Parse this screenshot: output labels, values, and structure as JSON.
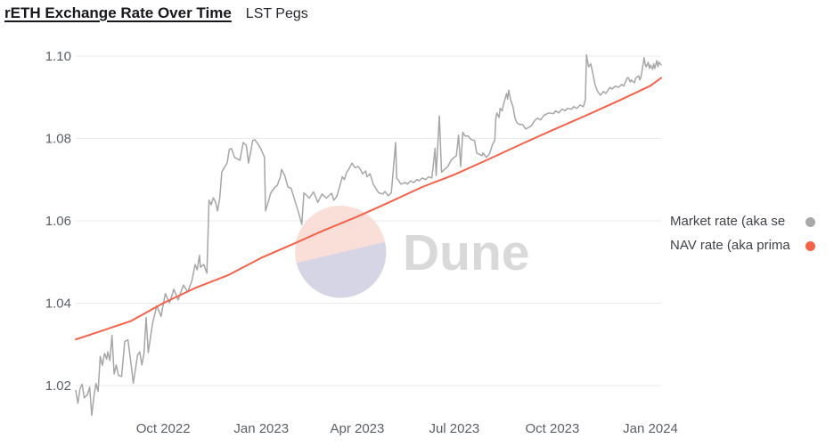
{
  "header": {
    "title": "rETH Exchange Rate Over Time",
    "subtitle": "LST Pegs"
  },
  "watermark": {
    "text": "Dune",
    "circle_top_color": "#fadfd8",
    "circle_bottom_color": "#d6d5e5",
    "text_color": "#d9d9d9"
  },
  "legend": {
    "items": [
      {
        "label": "Market rate (aka se",
        "color": "#a9a9a9"
      },
      {
        "label": "NAV rate (aka prima",
        "color": "#f4624a"
      }
    ]
  },
  "chart_data": {
    "type": "line",
    "title": "rETH Exchange Rate Over Time",
    "subtitle": "LST Pegs",
    "xlabel": "",
    "ylabel": "",
    "grid": "horizontal-only",
    "legend_position": "right",
    "x_domain": [
      "2022-07-11",
      "2024-01-11"
    ],
    "y_plot_range": [
      1.012,
      1.1028
    ],
    "y_ticks": [
      {
        "label": "1.10",
        "value": 1.1
      },
      {
        "label": "1.08",
        "value": 1.08
      },
      {
        "label": "1.06",
        "value": 1.06
      },
      {
        "label": "1.04",
        "value": 1.04
      },
      {
        "label": "1.02",
        "value": 1.02
      }
    ],
    "x_ticks": [
      {
        "label": "Oct 2022",
        "date": "2022-10-01"
      },
      {
        "label": "Jan 2023",
        "date": "2023-01-01"
      },
      {
        "label": "Apr 2023",
        "date": "2023-04-01"
      },
      {
        "label": "Jul 2023",
        "date": "2023-07-01"
      },
      {
        "label": "Oct 2023",
        "date": "2023-10-01"
      },
      {
        "label": "Jan 2024",
        "date": "2024-01-01"
      }
    ],
    "series": [
      {
        "name": "Market rate (aka se",
        "color": "#a6a6a6",
        "stroke_width": 1.5,
        "points": [
          [
            "2022-07-11",
            1.0188
          ],
          [
            "2022-07-13",
            1.0157
          ],
          [
            "2022-07-15",
            1.0192
          ],
          [
            "2022-07-17",
            1.0203
          ],
          [
            "2022-07-19",
            1.017
          ],
          [
            "2022-07-22",
            1.0178
          ],
          [
            "2022-07-24",
            1.0196
          ],
          [
            "2022-07-26",
            1.0128
          ],
          [
            "2022-07-28",
            1.0172
          ],
          [
            "2022-07-30",
            1.0205
          ],
          [
            "2022-08-01",
            1.0186
          ],
          [
            "2022-08-03",
            1.0271
          ],
          [
            "2022-08-05",
            1.0249
          ],
          [
            "2022-08-07",
            1.0278
          ],
          [
            "2022-08-09",
            1.0264
          ],
          [
            "2022-08-10",
            1.0282
          ],
          [
            "2022-08-12",
            1.0261
          ],
          [
            "2022-08-14",
            1.0322
          ],
          [
            "2022-08-16",
            1.0228
          ],
          [
            "2022-08-18",
            1.025
          ],
          [
            "2022-08-20",
            1.0225
          ],
          [
            "2022-08-23",
            1.0222
          ],
          [
            "2022-08-26",
            1.0307
          ],
          [
            "2022-08-29",
            1.0311
          ],
          [
            "2022-09-01",
            1.025
          ],
          [
            "2022-09-03",
            1.0206
          ],
          [
            "2022-09-07",
            1.0274
          ],
          [
            "2022-09-09",
            1.0282
          ],
          [
            "2022-09-11",
            1.025
          ],
          [
            "2022-09-13",
            1.0278
          ],
          [
            "2022-09-15",
            1.0365
          ],
          [
            "2022-09-17",
            1.028
          ],
          [
            "2022-09-21",
            1.0351
          ],
          [
            "2022-09-25",
            1.0394
          ],
          [
            "2022-09-29",
            1.0368
          ],
          [
            "2022-10-03",
            1.0423
          ],
          [
            "2022-10-07",
            1.0401
          ],
          [
            "2022-10-11",
            1.0434
          ],
          [
            "2022-10-15",
            1.0408
          ],
          [
            "2022-10-20",
            1.0444
          ],
          [
            "2022-10-24",
            1.0427
          ],
          [
            "2022-10-28",
            1.0455
          ],
          [
            "2022-10-31",
            1.0494
          ],
          [
            "2022-11-02",
            1.0481
          ],
          [
            "2022-11-04",
            1.0516
          ],
          [
            "2022-11-05",
            1.0487
          ],
          [
            "2022-11-08",
            1.0494
          ],
          [
            "2022-11-11",
            1.0473
          ],
          [
            "2022-11-13",
            1.065
          ],
          [
            "2022-11-15",
            1.0639
          ],
          [
            "2022-11-17",
            1.0656
          ],
          [
            "2022-11-19",
            1.0646
          ],
          [
            "2022-11-21",
            1.0624
          ],
          [
            "2022-11-23",
            1.0655
          ],
          [
            "2022-11-25",
            1.0719
          ],
          [
            "2022-11-28",
            1.0732
          ],
          [
            "2022-11-30",
            1.074
          ],
          [
            "2022-12-02",
            1.0773
          ],
          [
            "2022-12-04",
            1.0776
          ],
          [
            "2022-12-07",
            1.0754
          ],
          [
            "2022-12-09",
            1.0751
          ],
          [
            "2022-12-12",
            1.0747
          ],
          [
            "2022-12-15",
            1.079
          ],
          [
            "2022-12-18",
            1.0783
          ],
          [
            "2022-12-20",
            1.074
          ],
          [
            "2022-12-24",
            1.0795
          ],
          [
            "2022-12-26",
            1.0797
          ],
          [
            "2022-12-29",
            1.0786
          ],
          [
            "2023-01-01",
            1.0773
          ],
          [
            "2023-01-04",
            1.0754
          ],
          [
            "2023-01-05",
            1.0624
          ],
          [
            "2023-01-08",
            1.065
          ],
          [
            "2023-01-10",
            1.0668
          ],
          [
            "2023-01-14",
            1.0682
          ],
          [
            "2023-01-16",
            1.0686
          ],
          [
            "2023-01-19",
            1.0708
          ],
          [
            "2023-01-20",
            1.0725
          ],
          [
            "2023-01-23",
            1.071
          ],
          [
            "2023-01-26",
            1.0682
          ],
          [
            "2023-01-29",
            1.0679
          ],
          [
            "2023-02-02",
            1.0645
          ],
          [
            "2023-02-05",
            1.062
          ],
          [
            "2023-02-08",
            1.0591
          ],
          [
            "2023-02-10",
            1.0668
          ],
          [
            "2023-02-15",
            1.0655
          ],
          [
            "2023-02-19",
            1.067
          ],
          [
            "2023-02-23",
            1.0645
          ],
          [
            "2023-02-27",
            1.0665
          ],
          [
            "2023-03-03",
            1.0655
          ],
          [
            "2023-03-08",
            1.0667
          ],
          [
            "2023-03-10",
            1.065
          ],
          [
            "2023-03-13",
            1.066
          ],
          [
            "2023-03-18",
            1.0707
          ],
          [
            "2023-03-20",
            1.07
          ],
          [
            "2023-03-22",
            1.0718
          ],
          [
            "2023-03-24",
            1.0725
          ],
          [
            "2023-03-27",
            1.074
          ],
          [
            "2023-03-30",
            1.0729
          ],
          [
            "2023-04-02",
            1.0732
          ],
          [
            "2023-04-04",
            1.0725
          ],
          [
            "2023-04-06",
            1.0714
          ],
          [
            "2023-04-09",
            1.0721
          ],
          [
            "2023-04-10",
            1.0707
          ],
          [
            "2023-04-13",
            1.0714
          ],
          [
            "2023-04-16",
            1.0689
          ],
          [
            "2023-04-19",
            1.0676
          ],
          [
            "2023-04-21",
            1.0668
          ],
          [
            "2023-04-25",
            1.0665
          ],
          [
            "2023-04-27",
            1.0671
          ],
          [
            "2023-04-30",
            1.0661
          ],
          [
            "2023-05-03",
            1.0668
          ],
          [
            "2023-05-07",
            1.079
          ],
          [
            "2023-05-08",
            1.0704
          ],
          [
            "2023-05-10",
            1.0697
          ],
          [
            "2023-05-12",
            1.0689
          ],
          [
            "2023-05-16",
            1.0693
          ],
          [
            "2023-05-18",
            1.0689
          ],
          [
            "2023-05-21",
            1.0697
          ],
          [
            "2023-05-24",
            1.0693
          ],
          [
            "2023-05-27",
            1.07
          ],
          [
            "2023-05-29",
            1.0697
          ],
          [
            "2023-06-01",
            1.0704
          ],
          [
            "2023-06-04",
            1.07
          ],
          [
            "2023-06-07",
            1.0707
          ],
          [
            "2023-06-10",
            1.0704
          ],
          [
            "2023-06-13",
            1.0776
          ],
          [
            "2023-06-14",
            1.071
          ],
          [
            "2023-06-17",
            1.0855
          ],
          [
            "2023-06-19",
            1.0718
          ],
          [
            "2023-06-22",
            1.0725
          ],
          [
            "2023-06-25",
            1.0732
          ],
          [
            "2023-06-28",
            1.0747
          ],
          [
            "2023-07-01",
            1.0754
          ],
          [
            "2023-07-03",
            1.0758
          ],
          [
            "2023-07-05",
            1.0808
          ],
          [
            "2023-07-07",
            1.0732
          ],
          [
            "2023-07-09",
            1.0815
          ],
          [
            "2023-07-11",
            1.0806
          ],
          [
            "2023-07-14",
            1.0806
          ],
          [
            "2023-07-17",
            1.0797
          ],
          [
            "2023-07-20",
            1.0795
          ],
          [
            "2023-07-22",
            1.0765
          ],
          [
            "2023-07-24",
            1.0762
          ],
          [
            "2023-07-27",
            1.0758
          ],
          [
            "2023-07-28",
            1.0765
          ],
          [
            "2023-07-31",
            1.0754
          ],
          [
            "2023-08-03",
            1.0762
          ],
          [
            "2023-08-06",
            1.0786
          ],
          [
            "2023-08-08",
            1.0795
          ],
          [
            "2023-08-09",
            1.0849
          ],
          [
            "2023-08-10",
            1.0862
          ],
          [
            "2023-08-12",
            1.0851
          ],
          [
            "2023-08-13",
            1.0873
          ],
          [
            "2023-08-15",
            1.0867
          ],
          [
            "2023-08-16",
            1.0881
          ],
          [
            "2023-08-19",
            1.0909
          ],
          [
            "2023-08-20",
            1.0895
          ],
          [
            "2023-08-21",
            1.0917
          ],
          [
            "2023-08-23",
            1.0892
          ],
          [
            "2023-08-25",
            1.0877
          ],
          [
            "2023-08-27",
            1.0849
          ],
          [
            "2023-08-29",
            1.0838
          ],
          [
            "2023-08-31",
            1.0834
          ],
          [
            "2023-09-03",
            1.0834
          ],
          [
            "2023-09-06",
            1.0823
          ],
          [
            "2023-09-09",
            1.0827
          ],
          [
            "2023-09-11",
            1.083
          ],
          [
            "2023-09-15",
            1.0845
          ],
          [
            "2023-09-17",
            1.0849
          ],
          [
            "2023-09-20",
            1.0845
          ],
          [
            "2023-09-23",
            1.0856
          ],
          [
            "2023-09-26",
            1.086
          ],
          [
            "2023-09-28",
            1.0862
          ],
          [
            "2023-10-02",
            1.086
          ],
          [
            "2023-10-04",
            1.0867
          ],
          [
            "2023-10-07",
            1.0862
          ],
          [
            "2023-10-10",
            1.0871
          ],
          [
            "2023-10-13",
            1.0867
          ],
          [
            "2023-10-15",
            1.0873
          ],
          [
            "2023-10-19",
            1.0871
          ],
          [
            "2023-10-21",
            1.0877
          ],
          [
            "2023-10-24",
            1.0873
          ],
          [
            "2023-10-27",
            1.0881
          ],
          [
            "2023-10-30",
            1.0877
          ],
          [
            "2023-10-31",
            1.0884
          ],
          [
            "2023-11-01",
            1.0895
          ],
          [
            "2023-11-02",
            1.1003
          ],
          [
            "2023-11-04",
            1.0974
          ],
          [
            "2023-11-06",
            1.0981
          ],
          [
            "2023-11-08",
            1.0957
          ],
          [
            "2023-11-10",
            1.0931
          ],
          [
            "2023-11-12",
            1.0916
          ],
          [
            "2023-11-15",
            1.0905
          ],
          [
            "2023-11-18",
            1.0914
          ],
          [
            "2023-11-20",
            1.0909
          ],
          [
            "2023-11-24",
            1.0924
          ],
          [
            "2023-11-26",
            1.092
          ],
          [
            "2023-11-29",
            1.0927
          ],
          [
            "2023-12-02",
            1.0924
          ],
          [
            "2023-12-05",
            1.0931
          ],
          [
            "2023-12-07",
            1.0927
          ],
          [
            "2023-12-10",
            1.0946
          ],
          [
            "2023-12-11",
            1.0948
          ],
          [
            "2023-12-13",
            1.0937
          ],
          [
            "2023-12-14",
            1.0942
          ],
          [
            "2023-12-17",
            1.0935
          ],
          [
            "2023-12-18",
            1.0946
          ],
          [
            "2023-12-21",
            1.0952
          ],
          [
            "2023-12-22",
            1.0942
          ],
          [
            "2023-12-23",
            1.0948
          ],
          [
            "2023-12-26",
            1.0996
          ],
          [
            "2023-12-27",
            1.0981
          ],
          [
            "2023-12-28",
            1.0974
          ],
          [
            "2023-12-30",
            1.0985
          ],
          [
            "2023-12-31",
            1.097
          ],
          [
            "2024-01-01",
            1.0978
          ],
          [
            "2024-01-03",
            1.0968
          ],
          [
            "2024-01-04",
            1.0981
          ],
          [
            "2024-01-05",
            1.097
          ],
          [
            "2024-01-07",
            1.0989
          ],
          [
            "2024-01-08",
            1.0974
          ],
          [
            "2024-01-09",
            1.0985
          ],
          [
            "2024-01-11",
            1.0978
          ]
        ]
      },
      {
        "name": "NAV rate (aka prima",
        "color": "#f4624a",
        "stroke_width": 2,
        "points": [
          [
            "2022-07-11",
            1.0312
          ],
          [
            "2022-08-01",
            1.033
          ],
          [
            "2022-09-01",
            1.0357
          ],
          [
            "2022-10-01",
            1.04
          ],
          [
            "2022-11-01",
            1.0438
          ],
          [
            "2022-12-01",
            1.0468
          ],
          [
            "2023-01-01",
            1.051
          ],
          [
            "2023-02-01",
            1.0545
          ],
          [
            "2023-03-01",
            1.0577
          ],
          [
            "2023-04-01",
            1.061
          ],
          [
            "2023-05-01",
            1.0645
          ],
          [
            "2023-06-01",
            1.0682
          ],
          [
            "2023-07-01",
            1.0712
          ],
          [
            "2023-08-01",
            1.0748
          ],
          [
            "2023-09-01",
            1.0785
          ],
          [
            "2023-10-01",
            1.082
          ],
          [
            "2023-11-01",
            1.0855
          ],
          [
            "2023-12-01",
            1.089
          ],
          [
            "2024-01-01",
            1.0928
          ],
          [
            "2024-01-11",
            1.0947
          ]
        ]
      }
    ]
  }
}
